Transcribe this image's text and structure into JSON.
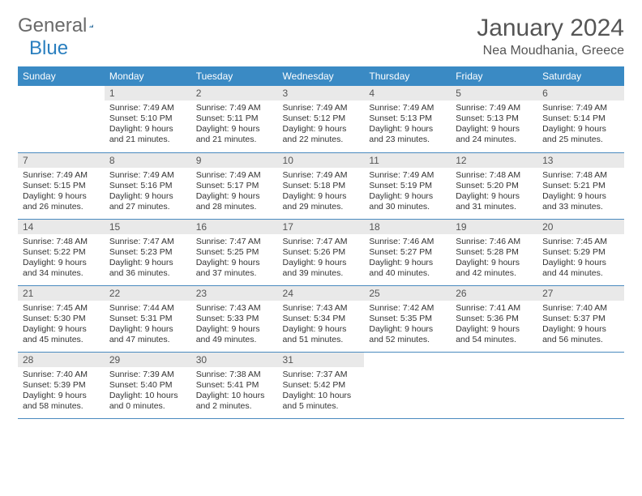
{
  "brand": {
    "word1": "General",
    "word2": "Blue"
  },
  "title": {
    "month": "January 2024",
    "location": "Nea Moudhania, Greece"
  },
  "colors": {
    "header_bg": "#3a8ac4",
    "header_text": "#ffffff",
    "daynum_bg": "#e9e9e9",
    "row_border": "#4a8abf",
    "body_text": "#333333",
    "brand_gray": "#6a6a6a",
    "brand_blue": "#2a7fbf"
  },
  "weekdays": [
    "Sunday",
    "Monday",
    "Tuesday",
    "Wednesday",
    "Thursday",
    "Friday",
    "Saturday"
  ],
  "labels": {
    "sunrise": "Sunrise:",
    "sunset": "Sunset:",
    "daylight": "Daylight:"
  },
  "weeks": [
    [
      null,
      {
        "n": "1",
        "sr": "7:49 AM",
        "ss": "5:10 PM",
        "dl": "9 hours and 21 minutes."
      },
      {
        "n": "2",
        "sr": "7:49 AM",
        "ss": "5:11 PM",
        "dl": "9 hours and 21 minutes."
      },
      {
        "n": "3",
        "sr": "7:49 AM",
        "ss": "5:12 PM",
        "dl": "9 hours and 22 minutes."
      },
      {
        "n": "4",
        "sr": "7:49 AM",
        "ss": "5:13 PM",
        "dl": "9 hours and 23 minutes."
      },
      {
        "n": "5",
        "sr": "7:49 AM",
        "ss": "5:13 PM",
        "dl": "9 hours and 24 minutes."
      },
      {
        "n": "6",
        "sr": "7:49 AM",
        "ss": "5:14 PM",
        "dl": "9 hours and 25 minutes."
      }
    ],
    [
      {
        "n": "7",
        "sr": "7:49 AM",
        "ss": "5:15 PM",
        "dl": "9 hours and 26 minutes."
      },
      {
        "n": "8",
        "sr": "7:49 AM",
        "ss": "5:16 PM",
        "dl": "9 hours and 27 minutes."
      },
      {
        "n": "9",
        "sr": "7:49 AM",
        "ss": "5:17 PM",
        "dl": "9 hours and 28 minutes."
      },
      {
        "n": "10",
        "sr": "7:49 AM",
        "ss": "5:18 PM",
        "dl": "9 hours and 29 minutes."
      },
      {
        "n": "11",
        "sr": "7:49 AM",
        "ss": "5:19 PM",
        "dl": "9 hours and 30 minutes."
      },
      {
        "n": "12",
        "sr": "7:48 AM",
        "ss": "5:20 PM",
        "dl": "9 hours and 31 minutes."
      },
      {
        "n": "13",
        "sr": "7:48 AM",
        "ss": "5:21 PM",
        "dl": "9 hours and 33 minutes."
      }
    ],
    [
      {
        "n": "14",
        "sr": "7:48 AM",
        "ss": "5:22 PM",
        "dl": "9 hours and 34 minutes."
      },
      {
        "n": "15",
        "sr": "7:47 AM",
        "ss": "5:23 PM",
        "dl": "9 hours and 36 minutes."
      },
      {
        "n": "16",
        "sr": "7:47 AM",
        "ss": "5:25 PM",
        "dl": "9 hours and 37 minutes."
      },
      {
        "n": "17",
        "sr": "7:47 AM",
        "ss": "5:26 PM",
        "dl": "9 hours and 39 minutes."
      },
      {
        "n": "18",
        "sr": "7:46 AM",
        "ss": "5:27 PM",
        "dl": "9 hours and 40 minutes."
      },
      {
        "n": "19",
        "sr": "7:46 AM",
        "ss": "5:28 PM",
        "dl": "9 hours and 42 minutes."
      },
      {
        "n": "20",
        "sr": "7:45 AM",
        "ss": "5:29 PM",
        "dl": "9 hours and 44 minutes."
      }
    ],
    [
      {
        "n": "21",
        "sr": "7:45 AM",
        "ss": "5:30 PM",
        "dl": "9 hours and 45 minutes."
      },
      {
        "n": "22",
        "sr": "7:44 AM",
        "ss": "5:31 PM",
        "dl": "9 hours and 47 minutes."
      },
      {
        "n": "23",
        "sr": "7:43 AM",
        "ss": "5:33 PM",
        "dl": "9 hours and 49 minutes."
      },
      {
        "n": "24",
        "sr": "7:43 AM",
        "ss": "5:34 PM",
        "dl": "9 hours and 51 minutes."
      },
      {
        "n": "25",
        "sr": "7:42 AM",
        "ss": "5:35 PM",
        "dl": "9 hours and 52 minutes."
      },
      {
        "n": "26",
        "sr": "7:41 AM",
        "ss": "5:36 PM",
        "dl": "9 hours and 54 minutes."
      },
      {
        "n": "27",
        "sr": "7:40 AM",
        "ss": "5:37 PM",
        "dl": "9 hours and 56 minutes."
      }
    ],
    [
      {
        "n": "28",
        "sr": "7:40 AM",
        "ss": "5:39 PM",
        "dl": "9 hours and 58 minutes."
      },
      {
        "n": "29",
        "sr": "7:39 AM",
        "ss": "5:40 PM",
        "dl": "10 hours and 0 minutes."
      },
      {
        "n": "30",
        "sr": "7:38 AM",
        "ss": "5:41 PM",
        "dl": "10 hours and 2 minutes."
      },
      {
        "n": "31",
        "sr": "7:37 AM",
        "ss": "5:42 PM",
        "dl": "10 hours and 5 minutes."
      },
      null,
      null,
      null
    ]
  ]
}
